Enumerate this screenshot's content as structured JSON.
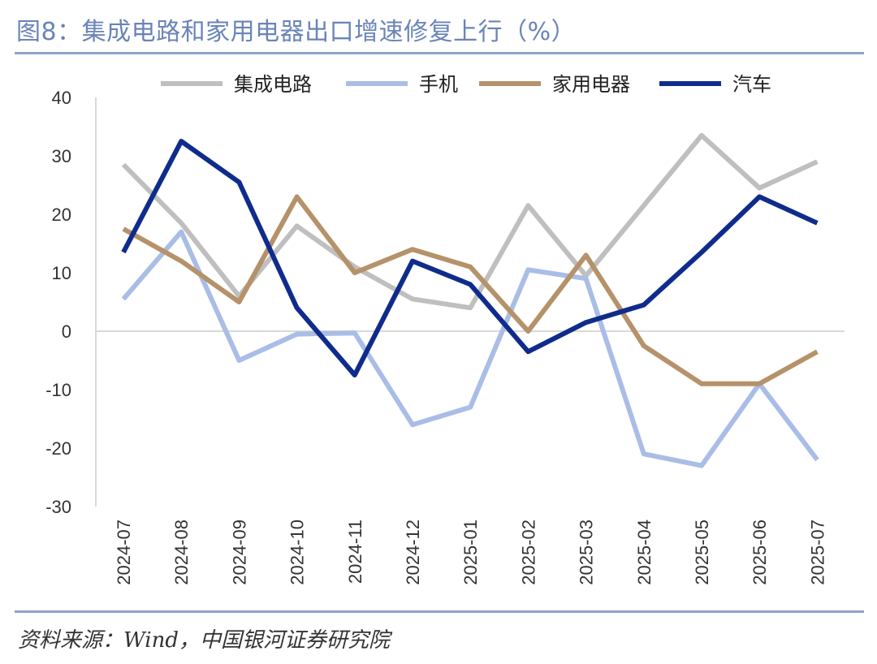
{
  "header": {
    "title": "图8：集成电路和家用电器出口增速修复上行（%）"
  },
  "footer": {
    "source": "资料来源：Wind，中国银河证券研究院"
  },
  "chart_data": {
    "type": "line",
    "title": "图8：集成电路和家用电器出口增速修复上行（%）",
    "xlabel": "",
    "ylabel": "",
    "ylim": [
      -30,
      40
    ],
    "yticks": [
      40,
      30,
      20,
      10,
      0,
      -10,
      -20,
      -30
    ],
    "grid": false,
    "legend_position": "top",
    "categories": [
      "2024-07",
      "2024-08",
      "2024-09",
      "2024-10",
      "2024-11",
      "2024-12",
      "2025-01",
      "2025-02",
      "2025-03",
      "2025-04",
      "2025-05",
      "2025-06",
      "2025-07"
    ],
    "series": [
      {
        "name": "集成电路",
        "color": "#bfbfbf",
        "values": [
          28.5,
          18.5,
          6.0,
          18.0,
          11.0,
          5.5,
          4.0,
          21.5,
          9.5,
          21.5,
          33.5,
          24.5,
          29.0
        ]
      },
      {
        "name": "手机",
        "color": "#a9bde6",
        "values": [
          5.5,
          17.0,
          -5.0,
          -0.5,
          -0.3,
          -16.0,
          -13.0,
          10.5,
          9.0,
          -21.0,
          -23.0,
          -9.0,
          -22.0
        ]
      },
      {
        "name": "家用电器",
        "color": "#b5926a",
        "values": [
          17.5,
          12.0,
          5.0,
          23.0,
          10.0,
          14.0,
          11.0,
          0.0,
          13.0,
          -2.5,
          -9.0,
          -9.0,
          -3.5
        ]
      },
      {
        "name": "汽车",
        "color": "#0f2c8c",
        "values": [
          13.5,
          32.5,
          25.5,
          4.0,
          -7.5,
          12.0,
          8.0,
          -3.5,
          1.5,
          4.5,
          13.5,
          23.0,
          18.5
        ]
      }
    ]
  }
}
